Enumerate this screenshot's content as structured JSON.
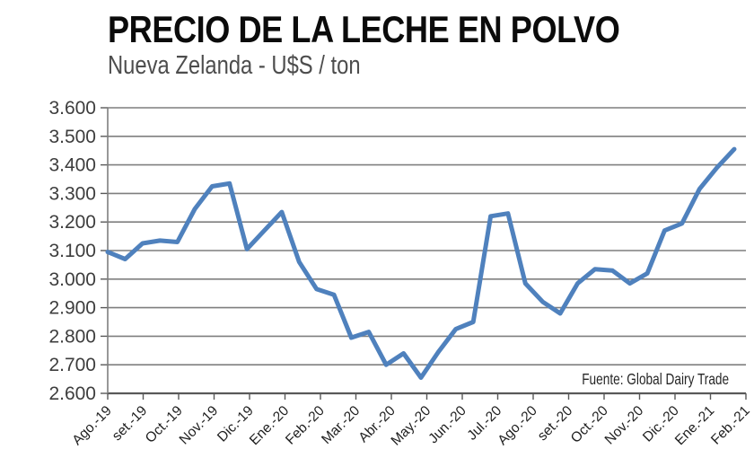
{
  "header": {
    "title": "PRECIO DE LA LECHE EN POLVO",
    "subtitle": "Nueva Zelanda - U$S / ton"
  },
  "source_note": "Fuente: Global Dairy Trade",
  "chart_data": {
    "type": "line",
    "title": "PRECIO DE LA LECHE EN POLVO",
    "subtitle": "Nueva Zelanda - U$S / ton",
    "ylabel": "U$S / ton",
    "source": "Fuente: Global Dairy Trade",
    "categories": [
      "Ago.-19",
      "set.-19",
      "Oct.-19",
      "Nov.-19",
      "Dic.-19",
      "Ene.-20",
      "Feb.-20",
      "Mar.-20",
      "Abr.-20",
      "May.-20",
      "Jun.-20",
      "Jul.-20",
      "Ago.-20",
      "set.-20",
      "Oct.-20",
      "Nov.-20",
      "Dic.-20",
      "Ene.-21",
      "Feb.-21"
    ],
    "points_per_category": 2,
    "values": [
      3095,
      3070,
      3125,
      3135,
      3130,
      3245,
      3325,
      3335,
      3105,
      3170,
      3235,
      3060,
      2965,
      2945,
      2795,
      2815,
      2700,
      2740,
      2655,
      2745,
      2825,
      2850,
      3220,
      3230,
      2985,
      2920,
      2880,
      2985,
      3035,
      3030,
      2985,
      3020,
      3170,
      3195,
      3315,
      3390,
      3455
    ],
    "ylim": [
      2600,
      3600
    ],
    "ytick_step": 100,
    "ytick_labels": [
      "3.600",
      "3.500",
      "3.400",
      "3.300",
      "3.200",
      "3.100",
      "3.000",
      "2.900",
      "2.800",
      "2.700",
      "2.600"
    ],
    "grid": true,
    "legend": false,
    "line_color": "#4F81BD",
    "grid_color": "#7F7F7F",
    "axis_color": "#595959",
    "line_width": 5
  }
}
